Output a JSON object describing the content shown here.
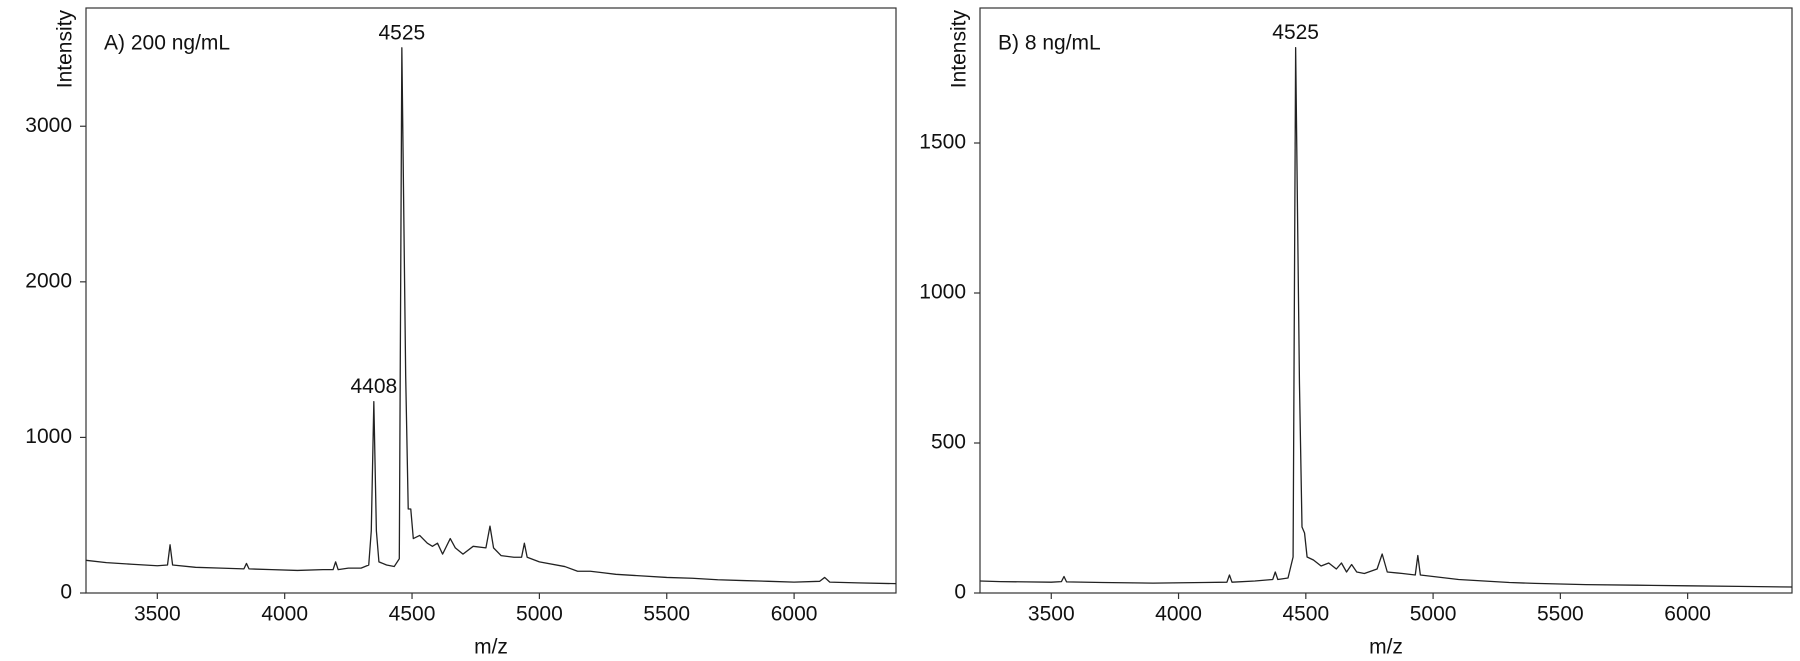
{
  "chart_data": [
    {
      "type": "line",
      "title": "A)  200 ng/mL",
      "x_label": "m/z",
      "y_label": "Intensity",
      "xlim": [
        3220,
        6400
      ],
      "ylim": [
        0,
        3760
      ],
      "xticks": [
        3500,
        4000,
        4500,
        5000,
        5500,
        6000
      ],
      "yticks": [
        0,
        1000,
        2000,
        3000
      ],
      "series": [
        {
          "color": "#222222",
          "x": [
            3220,
            3300,
            3400,
            3500,
            3540,
            3550,
            3560,
            3650,
            3750,
            3840,
            3850,
            3860,
            3950,
            4050,
            4150,
            4190,
            4200,
            4210,
            4250,
            4300,
            4330,
            4340,
            4350,
            4360,
            4370,
            4400,
            4430,
            4450,
            4460,
            4475,
            4485,
            4495,
            4505,
            4530,
            4560,
            4580,
            4600,
            4620,
            4650,
            4670,
            4700,
            4740,
            4790,
            4806,
            4820,
            4850,
            4900,
            4930,
            4941,
            4952,
            5000,
            5100,
            5150,
            5200,
            5250,
            5300,
            5400,
            5500,
            5600,
            5700,
            5800,
            5900,
            6000,
            6100,
            6120,
            6140,
            6250,
            6400
          ],
          "values": [
            210,
            195,
            185,
            175,
            180,
            310,
            180,
            165,
            160,
            155,
            190,
            155,
            150,
            145,
            150,
            150,
            200,
            150,
            160,
            160,
            180,
            400,
            1230,
            400,
            200,
            180,
            170,
            220,
            3504,
            1400,
            540,
            540,
            350,
            370,
            320,
            300,
            320,
            250,
            350,
            290,
            250,
            300,
            290,
            430,
            290,
            240,
            230,
            230,
            320,
            230,
            200,
            170,
            140,
            140,
            130,
            120,
            110,
            100,
            95,
            85,
            80,
            75,
            70,
            75,
            100,
            70,
            65,
            60
          ]
        }
      ],
      "annotations": [
        {
          "text": "4408",
          "x": 4350,
          "y": 1230
        },
        {
          "text": "4525",
          "x": 4460,
          "y": 3504
        }
      ]
    },
    {
      "type": "line",
      "title": "B) 8 ng/mL",
      "x_label": "m/z",
      "y_label": "Intensity",
      "xlim": [
        3220,
        6410
      ],
      "ylim": [
        0,
        1950
      ],
      "xticks": [
        3500,
        4000,
        4500,
        5000,
        5500,
        6000
      ],
      "yticks": [
        0,
        500,
        1000,
        1500
      ],
      "series": [
        {
          "color": "#222222",
          "x": [
            3220,
            3300,
            3400,
            3500,
            3540,
            3550,
            3560,
            3700,
            3900,
            4100,
            4190,
            4200,
            4210,
            4300,
            4370,
            4380,
            4390,
            4430,
            4450,
            4460,
            4475,
            4485,
            4495,
            4505,
            4530,
            4560,
            4590,
            4620,
            4640,
            4660,
            4680,
            4700,
            4730,
            4780,
            4800,
            4820,
            4880,
            4930,
            4940,
            4950,
            5000,
            5100,
            5200,
            5300,
            5400,
            5500,
            5600,
            5800,
            6000,
            6200,
            6410
          ],
          "values": [
            40,
            38,
            37,
            36,
            38,
            55,
            37,
            35,
            33,
            35,
            36,
            60,
            36,
            40,
            45,
            70,
            45,
            50,
            120,
            1818,
            700,
            220,
            200,
            120,
            110,
            90,
            100,
            80,
            100,
            70,
            95,
            70,
            65,
            80,
            130,
            70,
            65,
            60,
            125,
            60,
            55,
            45,
            40,
            35,
            32,
            30,
            28,
            26,
            24,
            22,
            20
          ]
        }
      ],
      "annotations": [
        {
          "text": "4525",
          "x": 4460,
          "y": 1818
        }
      ]
    }
  ]
}
